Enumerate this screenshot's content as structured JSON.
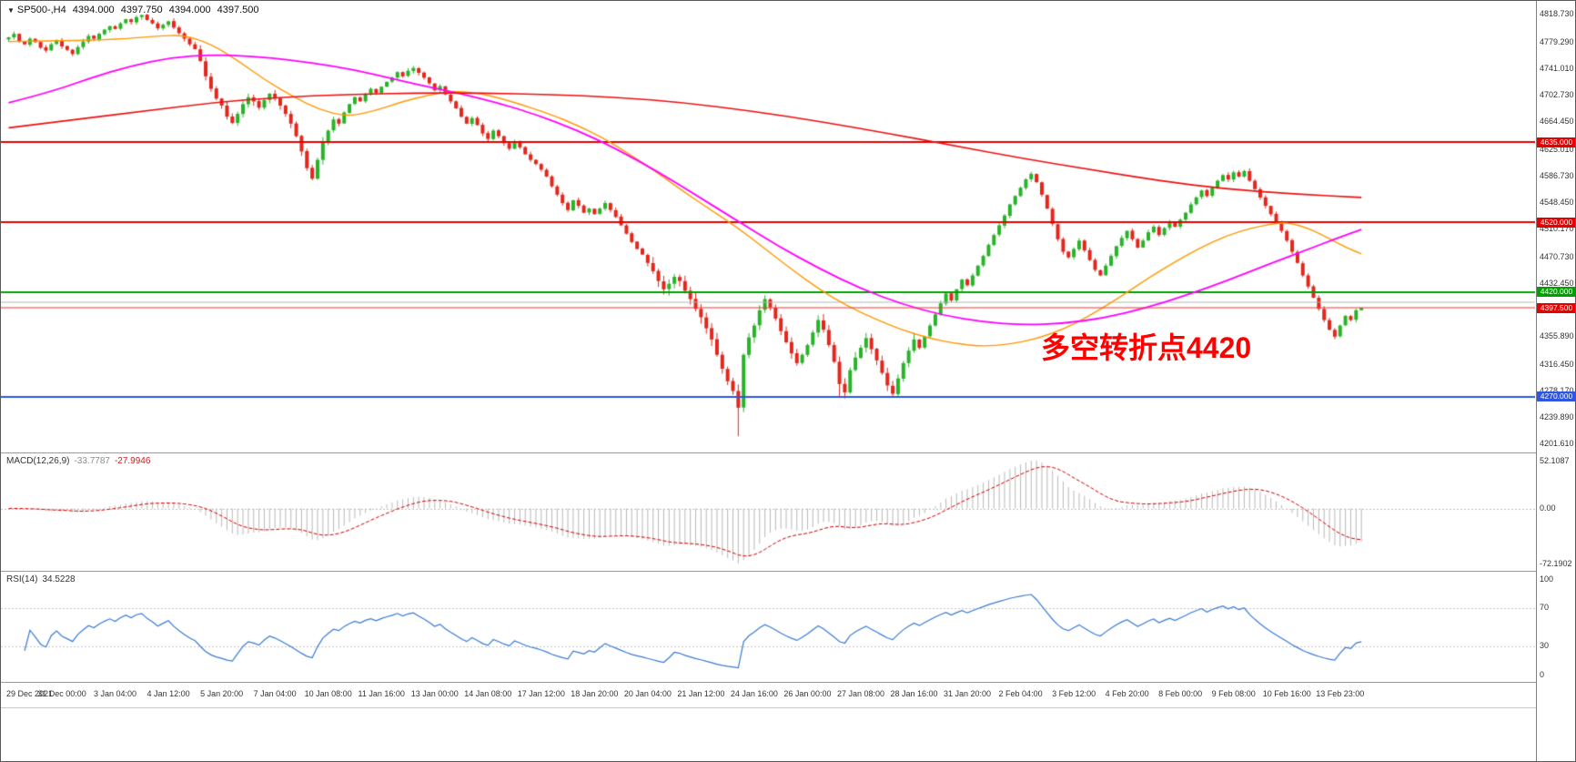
{
  "header": {
    "menu_icon": "▼",
    "symbol": "SP500-,H4",
    "open": "4394.000",
    "high": "4397.750",
    "low": "4394.000",
    "close": "4397.500"
  },
  "annotation": {
    "text": "多空转折点4420",
    "color": "#ff0000"
  },
  "colors": {
    "up_candle": "#28b428",
    "down_candle": "#e3271c",
    "ma_fast": "#ff9900",
    "ma_medium": "#ff00ff",
    "ma_slow": "#ee1111",
    "resistance": "#e60000",
    "pivot_green": "#00a000",
    "support_blue": "#2e56e0",
    "neutral_gray": "#b4b4b4",
    "macd_hist": "#b9b9b9",
    "macd_signal": "#d40000",
    "rsi_line": "#3a7bd5"
  },
  "chart_data": {
    "type": "candlestick",
    "title": "SP500-,H4",
    "timeframe": "H4",
    "price_axis": {
      "min": 4189.7,
      "max": 4838.3,
      "ticks": [
        "4818.730",
        "4779.290",
        "4741.010",
        "4702.730",
        "4664.450",
        "4625.010",
        "4586.730",
        "4548.450",
        "4510.170",
        "4470.730",
        "4432.450",
        "4355.890",
        "4316.450",
        "4278.170",
        "4239.890",
        "4201.610"
      ]
    },
    "time_labels": [
      "29 Dec 2021",
      "31 Dec 00:00",
      "3 Jan 04:00",
      "4 Jan 12:00",
      "5 Jan 20:00",
      "7 Jan 04:00",
      "10 Jan 08:00",
      "11 Jan 16:00",
      "13 Jan 00:00",
      "14 Jan 08:00",
      "17 Jan 12:00",
      "18 Jan 20:00",
      "20 Jan 04:00",
      "21 Jan 12:00",
      "24 Jan 16:00",
      "26 Jan 00:00",
      "27 Jan 08:00",
      "28 Jan 16:00",
      "31 Jan 20:00",
      "2 Feb 04:00",
      "3 Feb 12:00",
      "4 Feb 20:00",
      "8 Feb 00:00",
      "9 Feb 08:00",
      "10 Feb 16:00",
      "13 Feb 23:00"
    ],
    "bars_per_label": 10,
    "first_open": 4783,
    "closes": [
      4786,
      4791,
      4780,
      4776,
      4784,
      4779,
      4771,
      4767,
      4776,
      4781,
      4773,
      4768,
      4762,
      4772,
      4780,
      4788,
      4784,
      4791,
      4797,
      4802,
      4798,
      4806,
      4812,
      4808,
      4815,
      4818,
      4811,
      4806,
      4799,
      4804,
      4809,
      4800,
      4792,
      4784,
      4776,
      4769,
      4752,
      4730,
      4712,
      4698,
      4688,
      4672,
      4663,
      4676,
      4690,
      4700,
      4694,
      4685,
      4696,
      4705,
      4698,
      4688,
      4676,
      4662,
      4644,
      4622,
      4598,
      4583,
      4610,
      4636,
      4652,
      4668,
      4662,
      4678,
      4690,
      4700,
      4694,
      4705,
      4712,
      4706,
      4715,
      4722,
      4728,
      4736,
      4730,
      4738,
      4742,
      4735,
      4728,
      4720,
      4710,
      4716,
      4704,
      4694,
      4684,
      4672,
      4662,
      4670,
      4660,
      4648,
      4640,
      4652,
      4644,
      4634,
      4626,
      4636,
      4628,
      4618,
      4610,
      4604,
      4596,
      4586,
      4572,
      4560,
      4548,
      4538,
      4552,
      4544,
      4534,
      4540,
      4532,
      4540,
      4548,
      4538,
      4528,
      4516,
      4504,
      4492,
      4482,
      4474,
      4462,
      4450,
      4436,
      4424,
      4432,
      4442,
      4436,
      4422,
      4410,
      4396,
      4384,
      4368,
      4352,
      4330,
      4310,
      4292,
      4278,
      4254,
      4330,
      4355,
      4372,
      4394,
      4410,
      4398,
      4382,
      4364,
      4348,
      4332,
      4318,
      4330,
      4344,
      4362,
      4380,
      4366,
      4344,
      4320,
      4288,
      4276,
      4308,
      4326,
      4340,
      4354,
      4338,
      4322,
      4304,
      4286,
      4274,
      4296,
      4318,
      4336,
      4352,
      4340,
      4356,
      4372,
      4388,
      4404,
      4418,
      4408,
      4424,
      4438,
      4430,
      4444,
      4458,
      4472,
      4488,
      4502,
      4516,
      4530,
      4546,
      4558,
      4570,
      4582,
      4590,
      4578,
      4560,
      4540,
      4518,
      4496,
      4478,
      4470,
      4482,
      4494,
      4480,
      4466,
      4452,
      4444,
      4458,
      4472,
      4486,
      4498,
      4508,
      4496,
      4484,
      4494,
      4506,
      4514,
      4502,
      4512,
      4520,
      4514,
      4524,
      4534,
      4546,
      4556,
      4566,
      4558,
      4570,
      4580,
      4588,
      4582,
      4592,
      4586,
      4594,
      4580,
      4568,
      4556,
      4544,
      4532,
      4520,
      4508,
      4494,
      4478,
      4462,
      4444,
      4428,
      4412,
      4396,
      4380,
      4366,
      4356,
      4372,
      4386,
      4380,
      4394,
      4397.5
    ],
    "overrides": {
      "137": {
        "low": 4213
      },
      "156": {
        "low": 4268
      },
      "166": {
        "low": 4269
      },
      "254": {
        "open": 4394,
        "high": 4397.75,
        "low": 4394
      }
    },
    "moving_averages": [
      {
        "name": "ma-fast-orange",
        "color": "#ff9900",
        "width": 1.4,
        "anchors": [
          [
            0,
            4780
          ],
          [
            0.04,
            4781
          ],
          [
            0.08,
            4783
          ],
          [
            0.11,
            4788
          ],
          [
            0.13,
            4789
          ],
          [
            0.15,
            4776
          ],
          [
            0.17,
            4752
          ],
          [
            0.19,
            4724
          ],
          [
            0.21,
            4701
          ],
          [
            0.23,
            4682
          ],
          [
            0.25,
            4672
          ],
          [
            0.27,
            4680
          ],
          [
            0.29,
            4693
          ],
          [
            0.31,
            4703
          ],
          [
            0.33,
            4709
          ],
          [
            0.35,
            4705
          ],
          [
            0.37,
            4695
          ],
          [
            0.4,
            4676
          ],
          [
            0.42,
            4660
          ],
          [
            0.44,
            4641
          ],
          [
            0.46,
            4617
          ],
          [
            0.48,
            4591
          ],
          [
            0.5,
            4563
          ],
          [
            0.52,
            4537
          ],
          [
            0.54,
            4511
          ],
          [
            0.56,
            4481
          ],
          [
            0.58,
            4451
          ],
          [
            0.6,
            4423
          ],
          [
            0.62,
            4400
          ],
          [
            0.64,
            4382
          ],
          [
            0.66,
            4366
          ],
          [
            0.68,
            4354
          ],
          [
            0.7,
            4346
          ],
          [
            0.72,
            4342
          ],
          [
            0.74,
            4345
          ],
          [
            0.76,
            4353
          ],
          [
            0.78,
            4367
          ],
          [
            0.8,
            4387
          ],
          [
            0.82,
            4411
          ],
          [
            0.84,
            4437
          ],
          [
            0.86,
            4461
          ],
          [
            0.88,
            4483
          ],
          [
            0.9,
            4501
          ],
          [
            0.92,
            4513
          ],
          [
            0.94,
            4520
          ],
          [
            0.95,
            4518
          ],
          [
            0.96,
            4512
          ],
          [
            0.97,
            4503
          ],
          [
            0.98,
            4493
          ],
          [
            0.99,
            4483
          ],
          [
            1,
            4475
          ]
        ]
      },
      {
        "name": "ma-medium-magenta",
        "color": "#ff00ff",
        "width": 1.8,
        "anchors": [
          [
            0,
            4692
          ],
          [
            0.03,
            4707
          ],
          [
            0.06,
            4727
          ],
          [
            0.09,
            4745
          ],
          [
            0.12,
            4757
          ],
          [
            0.15,
            4761
          ],
          [
            0.18,
            4759
          ],
          [
            0.21,
            4753
          ],
          [
            0.24,
            4745
          ],
          [
            0.27,
            4733
          ],
          [
            0.3,
            4719
          ],
          [
            0.33,
            4707
          ],
          [
            0.36,
            4693
          ],
          [
            0.39,
            4675
          ],
          [
            0.42,
            4653
          ],
          [
            0.45,
            4625
          ],
          [
            0.48,
            4593
          ],
          [
            0.51,
            4557
          ],
          [
            0.54,
            4521
          ],
          [
            0.57,
            4485
          ],
          [
            0.6,
            4453
          ],
          [
            0.63,
            4425
          ],
          [
            0.66,
            4403
          ],
          [
            0.69,
            4387
          ],
          [
            0.72,
            4377
          ],
          [
            0.75,
            4373
          ],
          [
            0.78,
            4375
          ],
          [
            0.81,
            4383
          ],
          [
            0.84,
            4397
          ],
          [
            0.87,
            4415
          ],
          [
            0.9,
            4436
          ],
          [
            0.93,
            4459
          ],
          [
            0.96,
            4481
          ],
          [
            0.98,
            4496
          ],
          [
            1,
            4510
          ]
        ]
      },
      {
        "name": "ma-slow-red",
        "color": "#ee1111",
        "width": 1.6,
        "anchors": [
          [
            0,
            4656
          ],
          [
            0.05,
            4668
          ],
          [
            0.1,
            4680
          ],
          [
            0.15,
            4692
          ],
          [
            0.2,
            4700
          ],
          [
            0.25,
            4704
          ],
          [
            0.3,
            4706
          ],
          [
            0.35,
            4706
          ],
          [
            0.4,
            4704
          ],
          [
            0.45,
            4700
          ],
          [
            0.5,
            4692
          ],
          [
            0.55,
            4680
          ],
          [
            0.6,
            4665
          ],
          [
            0.65,
            4648
          ],
          [
            0.7,
            4630
          ],
          [
            0.75,
            4612
          ],
          [
            0.8,
            4596
          ],
          [
            0.85,
            4580
          ],
          [
            0.9,
            4568
          ],
          [
            0.95,
            4561
          ],
          [
            1,
            4556
          ]
        ]
      }
    ],
    "h_lines": [
      {
        "price": 4635.0,
        "color": "#e60000",
        "label": "4635.000",
        "width": 2
      },
      {
        "price": 4520.0,
        "color": "#e60000",
        "label": "4520.000",
        "width": 2
      },
      {
        "price": 4420.0,
        "color": "#00a000",
        "label": "4420.000",
        "width": 2
      },
      {
        "price": 4405.0,
        "color": "#b4b4b4",
        "label": null,
        "width": 1
      },
      {
        "price": 4270.0,
        "color": "#2e56e0",
        "label": "4270.000",
        "width": 2
      }
    ],
    "current_price": {
      "value": 4397.5,
      "label": "4397.500",
      "color": "#e60000"
    },
    "indicators": {
      "macd": {
        "label": "MACD(12,26,9)",
        "values_text": [
          "-33.7787",
          "-27.9946"
        ],
        "params": [
          12,
          26,
          9
        ],
        "axis_labels": [
          "52.1087",
          "0.00",
          "-72.1902"
        ],
        "hist_color": "#b9b9b9",
        "signal_color": "#d40000"
      },
      "rsi": {
        "label": "RSI(14)",
        "value_text": "34.5228",
        "period": 14,
        "axis_labels": [
          100,
          70,
          30,
          0
        ],
        "levels": [
          70,
          30
        ],
        "line_color": "#3a7bd5"
      }
    }
  }
}
